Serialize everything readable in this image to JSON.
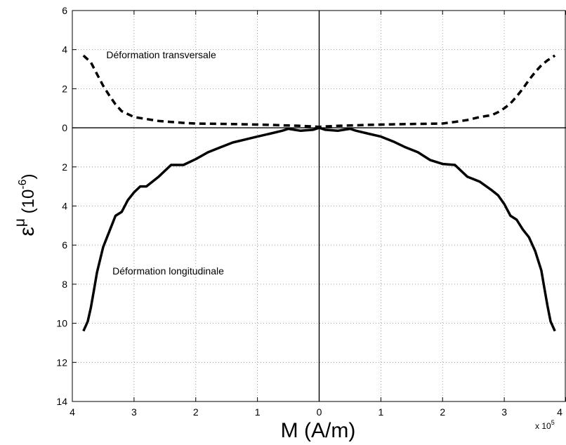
{
  "chart_data": {
    "type": "line",
    "xlabel": "M (A/m)",
    "ylabel_base": "ε",
    "ylabel_sup": "μ",
    "ylabel_unit_prefix": "(10",
    "ylabel_unit_exp": "-6",
    "ylabel_unit_suffix": ")",
    "x_multiplier_text": "x 10",
    "x_multiplier_exp": "5",
    "xlim": [
      4,
      -4
    ],
    "ylim": [
      -6,
      14
    ],
    "y_inverted": true,
    "grid": true,
    "x_ticks": [
      4,
      3,
      2,
      1,
      0,
      -1,
      -2,
      -3,
      -4
    ],
    "x_tick_labels": [
      "4",
      "3",
      "2",
      "1",
      "0",
      "1",
      "2",
      "3",
      "4"
    ],
    "y_ticks": [
      -6,
      -4,
      -2,
      0,
      2,
      4,
      6,
      8,
      10,
      12,
      14
    ],
    "y_tick_labels": [
      "6",
      "4",
      "2",
      "0",
      "2",
      "4",
      "6",
      "8",
      "10",
      "12",
      "14"
    ],
    "annotations": [
      {
        "text": "Déformation transversale",
        "x": 3.45,
        "y": -3.55
      },
      {
        "text": "Déformation longitudinale",
        "x": 3.35,
        "y": 7.5
      }
    ],
    "series": [
      {
        "style": "dashed",
        "x": [
          3.82,
          3.7,
          3.6,
          3.5,
          3.4,
          3.3,
          3.2,
          3.1,
          3.0,
          2.9,
          2.8,
          2.6,
          2.4,
          2.2,
          2.0,
          1.6,
          1.2,
          0.8,
          0.5,
          0.3,
          0.1,
          0.0,
          -0.1,
          -0.3,
          -0.5,
          -0.8,
          -1.2,
          -1.6,
          -2.0,
          -2.2,
          -2.4,
          -2.6,
          -2.7,
          -2.8,
          -2.9,
          -3.0,
          -3.1,
          -3.2,
          -3.3,
          -3.4,
          -3.5,
          -3.6,
          -3.7,
          -3.82
        ],
        "y": [
          -3.7,
          -3.35,
          -2.75,
          -2.15,
          -1.65,
          -1.2,
          -0.85,
          -0.7,
          -0.55,
          -0.5,
          -0.45,
          -0.35,
          -0.3,
          -0.25,
          -0.22,
          -0.2,
          -0.18,
          -0.15,
          -0.12,
          -0.1,
          -0.07,
          -0.05,
          -0.07,
          -0.1,
          -0.12,
          -0.15,
          -0.18,
          -0.2,
          -0.22,
          -0.3,
          -0.4,
          -0.55,
          -0.6,
          -0.65,
          -0.8,
          -1.0,
          -1.25,
          -1.6,
          -2.0,
          -2.45,
          -2.85,
          -3.2,
          -3.45,
          -3.7
        ]
      },
      {
        "style": "solid",
        "x": [
          3.82,
          3.75,
          3.7,
          3.65,
          3.6,
          3.5,
          3.4,
          3.3,
          3.2,
          3.1,
          3.0,
          2.9,
          2.8,
          2.6,
          2.4,
          2.2,
          2.0,
          1.8,
          1.6,
          1.4,
          1.2,
          1.0,
          0.8,
          0.6,
          0.5,
          0.3,
          0.1,
          0.0,
          -0.1,
          -0.3,
          -0.5,
          -0.6,
          -0.8,
          -1.0,
          -1.2,
          -1.4,
          -1.6,
          -1.8,
          -2.0,
          -2.2,
          -2.4,
          -2.6,
          -2.8,
          -2.9,
          -3.0,
          -3.1,
          -3.2,
          -3.3,
          -3.4,
          -3.5,
          -3.6,
          -3.65,
          -3.7,
          -3.75,
          -3.82
        ],
        "y": [
          10.4,
          9.9,
          9.2,
          8.3,
          7.4,
          6.1,
          5.3,
          4.5,
          4.3,
          3.7,
          3.3,
          3.0,
          3.0,
          2.5,
          1.9,
          1.9,
          1.6,
          1.25,
          1.0,
          0.75,
          0.6,
          0.45,
          0.3,
          0.15,
          0.05,
          0.15,
          0.1,
          0.0,
          0.1,
          0.15,
          0.05,
          0.15,
          0.3,
          0.45,
          0.7,
          1.0,
          1.25,
          1.65,
          1.85,
          1.9,
          2.5,
          2.75,
          3.2,
          3.45,
          3.9,
          4.5,
          4.7,
          5.2,
          5.6,
          6.3,
          7.3,
          8.2,
          9.1,
          9.9,
          10.4
        ]
      }
    ]
  }
}
